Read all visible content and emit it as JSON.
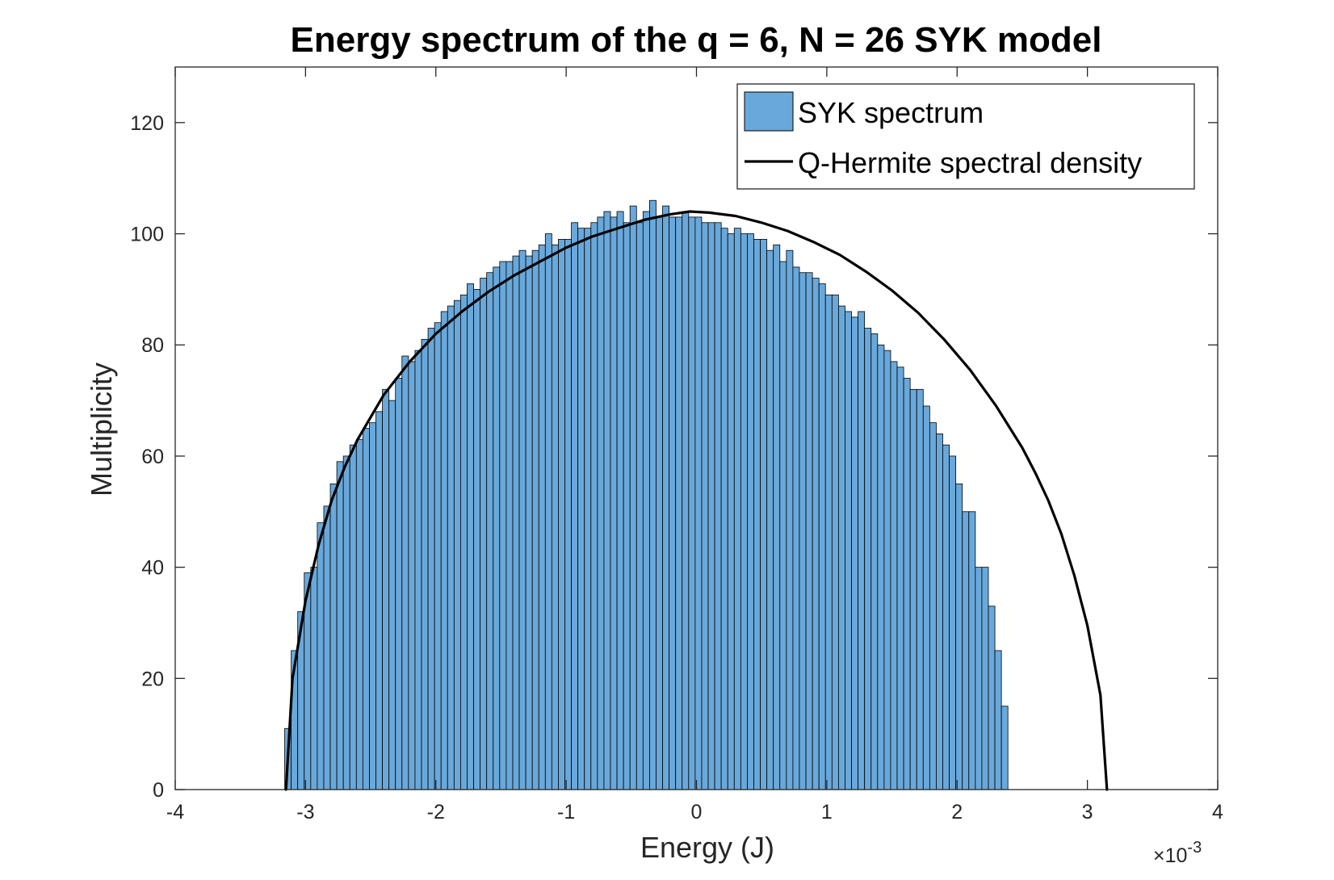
{
  "chart_data": {
    "type": "bar",
    "title": "Energy spectrum of the q = 6, N = 26 SYK model",
    "xlabel": "Energy (J)",
    "ylabel": "Multiplicity",
    "x_multiplier": "×10",
    "x_multiplier_exponent": "-3",
    "xlim": [
      -4,
      4
    ],
    "ylim": [
      0,
      130
    ],
    "xticks": [
      -4,
      -3,
      -2,
      -1,
      0,
      1,
      2,
      3,
      4
    ],
    "xtick_labels": [
      "-4",
      "-3",
      "-2",
      "-1",
      "0",
      "1",
      "2",
      "3",
      "4"
    ],
    "yticks": [
      0,
      20,
      40,
      60,
      80,
      100,
      120
    ],
    "ytick_labels": [
      "0",
      "20",
      "40",
      "60",
      "80",
      "100",
      "120"
    ],
    "grid": false,
    "legend_position": "top-right",
    "bar_color": "#69a8da",
    "bar_edge_color": "#000000",
    "line_color": "#000000",
    "series": [
      {
        "name": "SYK spectrum",
        "kind": "histogram"
      },
      {
        "name": "Q-Hermite spectral density",
        "kind": "line"
      }
    ],
    "histogram": {
      "bin_start": -3.16,
      "bin_width": 0.05,
      "counts": [
        11,
        25,
        32,
        39,
        40,
        48,
        51,
        55,
        59,
        60,
        62,
        63,
        65,
        66,
        68,
        72,
        70,
        74,
        78,
        77,
        79,
        81,
        83,
        84,
        86,
        87,
        88,
        89,
        91,
        90,
        92,
        93,
        94,
        95,
        95,
        96,
        97,
        96,
        97,
        98,
        100,
        98,
        99,
        99,
        102,
        101,
        101,
        102,
        103,
        104,
        103,
        104,
        102,
        105,
        102,
        104,
        106,
        103,
        105,
        103,
        103,
        104,
        103,
        103,
        102,
        102,
        102,
        101,
        100,
        101,
        100,
        100,
        99,
        99,
        97,
        98,
        95,
        97,
        94,
        93,
        93,
        92,
        91,
        89,
        89,
        87,
        86,
        85,
        86,
        83,
        82,
        80,
        79,
        77,
        76,
        74,
        72,
        72,
        69,
        66,
        64,
        62,
        60,
        55,
        50,
        50,
        40,
        40,
        33,
        25,
        15
      ]
    },
    "density_curve": {
      "x": [
        -3.15,
        -3.1,
        -3.0,
        -2.9,
        -2.8,
        -2.7,
        -2.6,
        -2.5,
        -2.4,
        -2.2,
        -2.0,
        -1.8,
        -1.6,
        -1.4,
        -1.2,
        -1.0,
        -0.8,
        -0.6,
        -0.4,
        -0.2,
        -0.05,
        0.1,
        0.3,
        0.5,
        0.7,
        0.9,
        1.1,
        1.3,
        1.5,
        1.7,
        1.9,
        2.1,
        2.3,
        2.5,
        2.6,
        2.7,
        2.8,
        2.9,
        3.0,
        3.1,
        3.15
      ],
      "y": [
        0,
        20,
        34,
        44,
        52,
        58,
        63,
        67,
        71,
        77,
        82,
        86,
        89.5,
        92.5,
        95,
        97.5,
        99.5,
        101,
        102.5,
        103.5,
        104,
        103.8,
        103.2,
        102,
        100.5,
        98.5,
        96.2,
        93.2,
        89.8,
        85.8,
        81,
        75.5,
        69,
        61.5,
        57,
        52,
        46,
        38.5,
        29.5,
        17,
        0
      ]
    }
  }
}
